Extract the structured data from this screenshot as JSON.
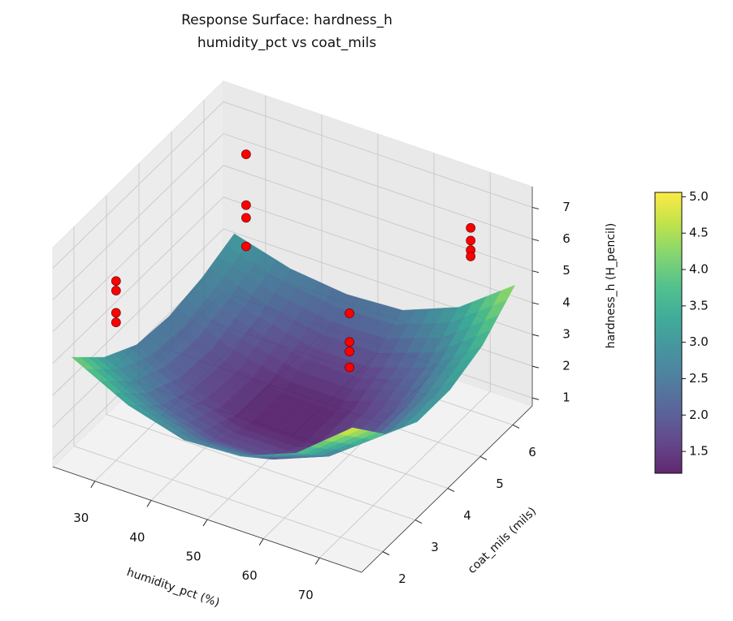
{
  "chart_data": {
    "type": "surface",
    "title": "Response Surface: hardness_h",
    "subtitle": "humidity_pct vs coat_mils",
    "xlabel": "humidity_pct (%)",
    "ylabel": "coat_mils (mils)",
    "zlabel": "hardness_h (H_pencil)",
    "xlim": [
      22.5,
      77.5
    ],
    "ylim": [
      1.35,
      6.6
    ],
    "zlim": [
      0.75,
      7.65
    ],
    "xticks": [
      30,
      40,
      50,
      60,
      70
    ],
    "yticks": [
      2,
      3,
      4,
      5,
      6
    ],
    "zticks": [
      1,
      2,
      3,
      4,
      5,
      6,
      7
    ],
    "grid": true,
    "cmap": "viridis",
    "surface_alpha": 0.85,
    "x": [
      25,
      35,
      45,
      55,
      65,
      75
    ],
    "y": [
      1.5,
      2.5,
      3.5,
      4.5,
      5.5,
      6.5
    ],
    "z": [
      [
        4.2,
        3.3,
        2.8,
        2.9,
        3.6,
        5.0
      ],
      [
        3.2,
        2.3,
        1.8,
        1.8,
        2.5,
        3.8
      ],
      [
        2.6,
        1.8,
        1.3,
        1.3,
        1.9,
        3.2
      ],
      [
        2.5,
        1.7,
        1.3,
        1.3,
        1.9,
        3.2
      ],
      [
        2.7,
        2.1,
        1.7,
        1.7,
        2.3,
        3.6
      ],
      [
        3.1,
        2.6,
        2.4,
        2.5,
        3.2,
        4.5
      ]
    ],
    "scatter": {
      "color": "#ff0000",
      "x": [
        30,
        30,
        30,
        30,
        30,
        30,
        30,
        30,
        60,
        60,
        60,
        60,
        70,
        70,
        70,
        70
      ],
      "y": [
        2,
        2,
        2,
        2,
        6,
        6,
        6,
        6,
        4,
        4,
        4,
        4,
        6,
        6,
        6,
        6
      ],
      "z": [
        6.4,
        6.1,
        5.4,
        5.1,
        6.4,
        4.8,
        4.4,
        3.5,
        5.2,
        4.3,
        4.0,
        3.5,
        6.5,
        6.1,
        5.8,
        5.6
      ]
    },
    "clim": [
      1.2,
      5.06
    ],
    "colorbar_ticks": [
      1.5,
      {
        "value": 2.0,
        "label": "2.0"
      },
      2.5,
      {
        "value": 3.0,
        "label": "3.0"
      },
      3.5,
      {
        "value": 4.0,
        "label": "4.0"
      },
      4.5,
      {
        "value": 5.0,
        "label": "5.0"
      }
    ]
  }
}
